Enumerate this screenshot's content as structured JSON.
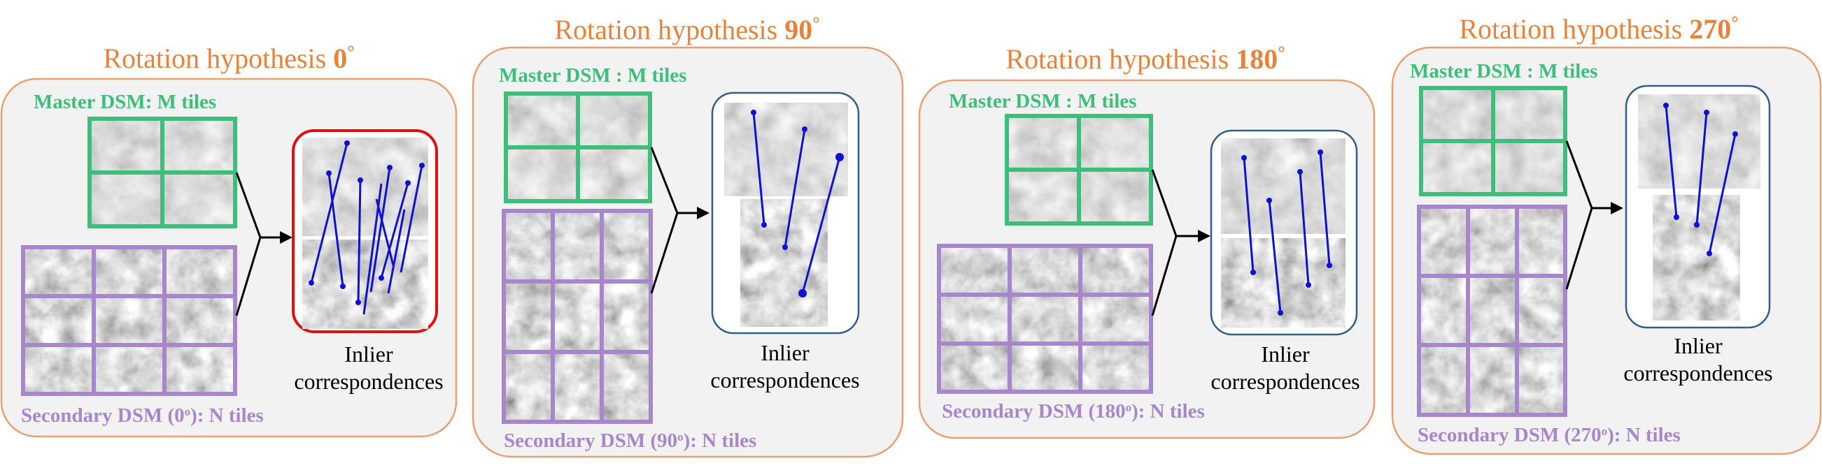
{
  "panels": [
    {
      "title": "Rotation hypothesis ",
      "angle": "0",
      "deg": "°",
      "master_label": "Master DSM: M tiles",
      "secondary_label_pre": "Secondary DSM (0",
      "secondary_label_post": "): N tiles",
      "secondary_sup": "o",
      "inlier_line1": "Inlier",
      "inlier_line2": "correspondences",
      "highlighted": true
    },
    {
      "title": "Rotation hypothesis ",
      "angle": "90",
      "deg": "°",
      "master_label": "Master DSM : M tiles",
      "secondary_label_pre": "Secondary DSM (90",
      "secondary_label_post": "): N tiles",
      "secondary_sup": "o",
      "inlier_line1": "Inlier",
      "inlier_line2": "correspondences",
      "highlighted": false
    },
    {
      "title": "Rotation hypothesis ",
      "angle": "180",
      "deg": "°",
      "master_label": "Master DSM : M tiles",
      "secondary_label_pre": "Secondary DSM (180",
      "secondary_label_post": "): N tiles",
      "secondary_sup": "o",
      "inlier_line1": "Inlier",
      "inlier_line2": "correspondences",
      "highlighted": false
    },
    {
      "title": "Rotation hypothesis ",
      "angle": "270",
      "deg": "°",
      "master_label": "Master DSM : M tiles",
      "secondary_label_pre": "Secondary DSM (270",
      "secondary_label_post": "): N tiles",
      "secondary_sup": "o",
      "inlier_line1": "Inlier",
      "inlier_line2": "correspondences",
      "highlighted": false
    }
  ],
  "colors": {
    "title": "#E8823A",
    "panel_border": "#E8A070",
    "panel_fill": "#F2F2F2",
    "master": "#3DBE7A",
    "secondary": "#A886CC",
    "inlier_box": "#2F5E88",
    "inlier_box_highlight": "#E01010",
    "match_line": "#1010D0",
    "arrow": "#000000"
  }
}
